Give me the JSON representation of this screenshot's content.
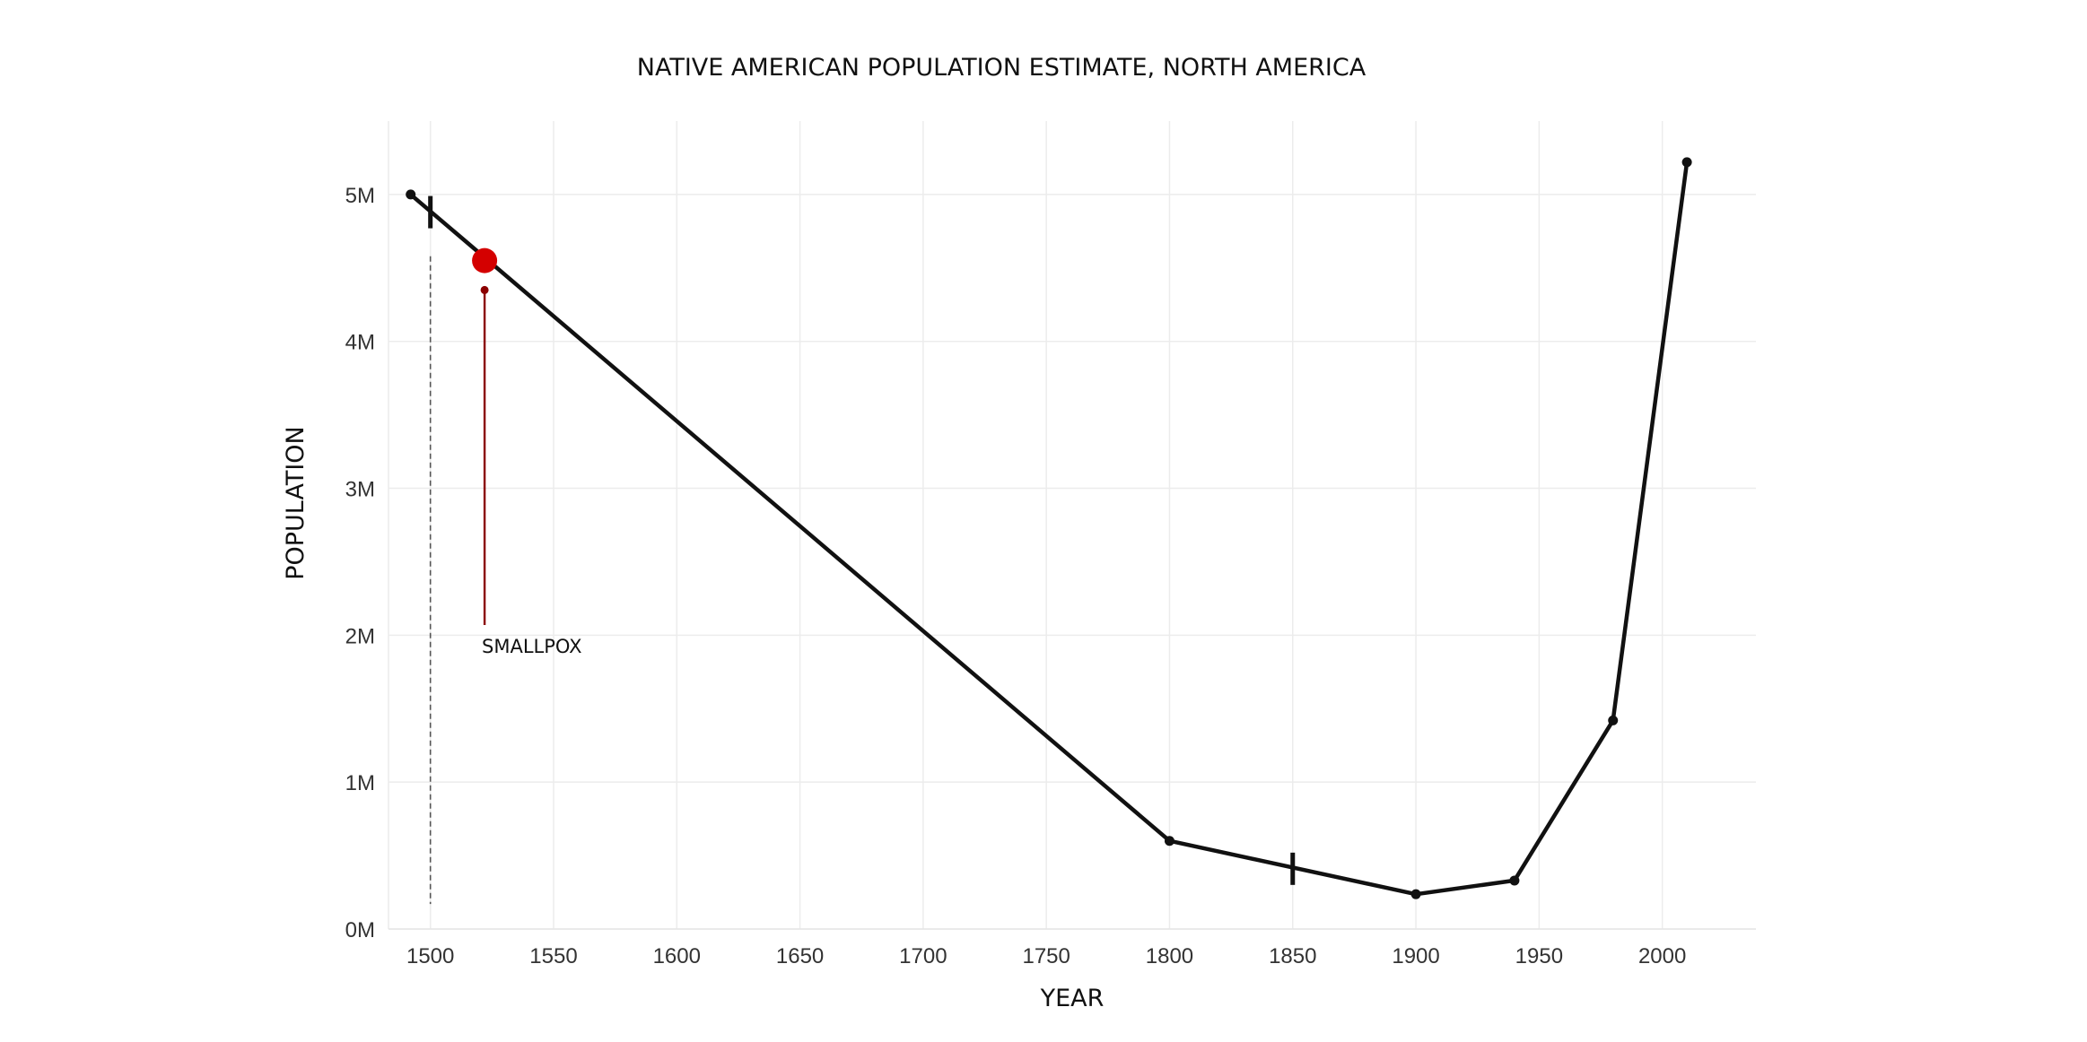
{
  "chart_data": {
    "type": "line",
    "title": "NATIVE AMERICAN POPULATION ESTIMATE, NORTH AMERICA",
    "xlabel": "YEAR",
    "ylabel": "POPULATION",
    "xlim": [
      1483,
      2038
    ],
    "ylim": [
      0,
      5.5
    ],
    "grid": true,
    "xticks": [
      1500,
      1550,
      1600,
      1650,
      1700,
      1750,
      1800,
      1850,
      1900,
      1950,
      2000
    ],
    "xtick_labels": [
      "1500",
      "1550",
      "1600",
      "1650",
      "1700",
      "1750",
      "1800",
      "1850",
      "1900",
      "1950",
      "2000"
    ],
    "yticks": [
      0,
      1,
      2,
      3,
      4,
      5
    ],
    "ytick_labels": [
      "0M",
      "1M",
      "2M",
      "3M",
      "4M",
      "5M"
    ],
    "series": [
      {
        "x": [
          1492,
          1800,
          1900,
          1940,
          1980,
          2010
        ],
        "y": [
          5.0,
          0.6,
          0.237,
          0.33,
          1.42,
          5.22
        ]
      }
    ],
    "tick_markers": [
      {
        "x": 1500,
        "y": 4.88
      },
      {
        "x": 1850,
        "y": 0.41
      }
    ],
    "highlight_point": {
      "x": 1522,
      "y": 4.55,
      "color": "#d40000"
    },
    "reference_line_x": 1500,
    "annotations": [
      {
        "text": "SMALLPOX",
        "x": 1522,
        "y": 4.35,
        "color": "#8b0000"
      }
    ]
  }
}
